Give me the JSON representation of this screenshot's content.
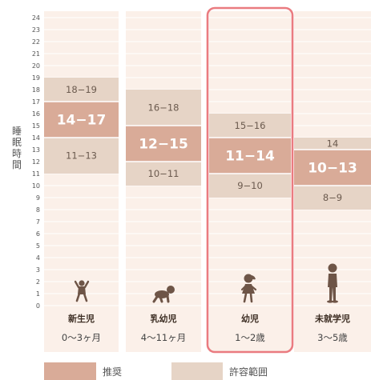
{
  "chart_data": {
    "type": "bar",
    "ylabel": "睡眠時間",
    "ylim": [
      0,
      24
    ],
    "yticks": [
      0,
      1,
      2,
      3,
      4,
      5,
      6,
      7,
      8,
      9,
      10,
      11,
      12,
      13,
      14,
      15,
      16,
      17,
      18,
      19,
      20,
      21,
      22,
      23,
      24
    ],
    "categories": [
      {
        "name": "新生児",
        "age": "0〜3ヶ月",
        "icon": "newborn-baby-icon",
        "highlighted": false,
        "recommended": [
          14,
          17
        ],
        "recommended_label": "14−17",
        "allowed": [
          11,
          19
        ],
        "allowed_upper_label": "18−19",
        "allowed_lower_label": "11−13"
      },
      {
        "name": "乳幼児",
        "age": "4〜11ヶ月",
        "icon": "crawling-infant-icon",
        "highlighted": false,
        "recommended": [
          12,
          15
        ],
        "recommended_label": "12−15",
        "allowed": [
          10,
          18
        ],
        "allowed_upper_label": "16−18",
        "allowed_lower_label": "10−11"
      },
      {
        "name": "幼児",
        "age": "1〜2歳",
        "icon": "toddler-icon",
        "highlighted": true,
        "recommended": [
          11,
          14
        ],
        "recommended_label": "11−14",
        "allowed": [
          9,
          16
        ],
        "allowed_upper_label": "15−16",
        "allowed_lower_label": "9−10"
      },
      {
        "name": "未就学児",
        "age": "3〜5歳",
        "icon": "preschooler-icon",
        "highlighted": false,
        "recommended": [
          10,
          13
        ],
        "recommended_label": "10−13",
        "allowed": [
          8,
          14
        ],
        "allowed_upper_label": "14",
        "allowed_lower_label": "8−9"
      }
    ],
    "legend": [
      {
        "label": "推奨",
        "color": "#d9ab98"
      },
      {
        "label": "許容範囲",
        "color": "#e6d4c6"
      }
    ],
    "colors": {
      "background": "#fbf0e9",
      "gridline": "#ffffff",
      "recommended": "#d9ab98",
      "allowed": "#e6d4c6",
      "icon": "#6e5547",
      "highlight": "#ea7b80"
    }
  }
}
